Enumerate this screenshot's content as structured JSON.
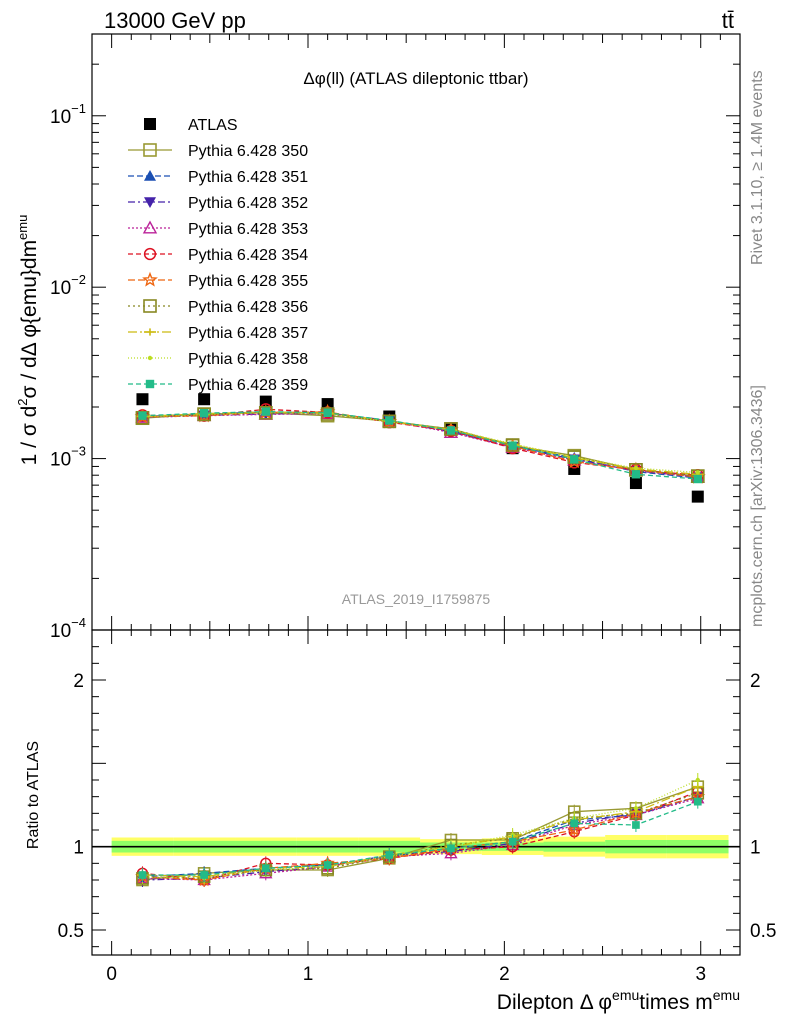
{
  "header": {
    "left": "13000 GeV pp",
    "right": "tt̄"
  },
  "side": {
    "rivet": "Rivet 3.1.10, ≥ 1.4M events",
    "mcplots": "mcplots.cern.ch [arXiv:1306.3436]"
  },
  "colors": {
    "band_inner": "#33ff66",
    "band_outer": "#ffff66"
  },
  "chart_data": [
    {
      "type": "scatter",
      "title": "Δφ(ll) (ATLAS dileptonic ttbar)",
      "watermark": "ATLAS_2019_I1759875",
      "ylabel": "1 / σ  d²σ / dΔ φ{emu}dm^emu",
      "yscale": "log",
      "ylim": [
        0.0001,
        0.3
      ],
      "yticks": [
        {
          "value": 0.001,
          "base": "10",
          "exp": "−3"
        },
        {
          "value": 0.01,
          "base": "10",
          "exp": "−2"
        },
        {
          "value": 0.1,
          "base": "10",
          "exp": "−1"
        },
        {
          "value": 0.0001,
          "base": "10",
          "exp": "−4"
        }
      ],
      "xlim": [
        -0.1,
        3.2
      ],
      "x": [
        0.157,
        0.471,
        0.785,
        1.1,
        1.414,
        1.728,
        2.042,
        2.356,
        2.67,
        2.985
      ],
      "series": [
        {
          "name": "ATLAS",
          "color": "#000000",
          "marker": "square-filled",
          "dash": "none",
          "values": [
            0.00222,
            0.00222,
            0.00215,
            0.00208,
            0.00176,
            0.00148,
            0.00115,
            0.00087,
            0.00072,
            0.0006
          ]
        },
        {
          "name": "Pythia 6.428 350",
          "color": "#999933",
          "marker": "square-open",
          "dash": "solid",
          "values": [
            0.00172,
            0.00182,
            0.00185,
            0.00178,
            0.00165,
            0.00149,
            0.00119,
            0.00104,
            0.00086,
            0.00079
          ]
        },
        {
          "name": "Pythia 6.428 351",
          "color": "#1b4fb3",
          "marker": "triangle-up-filled",
          "dash": "6,3",
          "values": [
            0.00176,
            0.00182,
            0.00187,
            0.00185,
            0.00166,
            0.00146,
            0.00118,
            0.00101,
            0.00084,
            0.00077
          ]
        },
        {
          "name": "Pythia 6.428 352",
          "color": "#4422aa",
          "marker": "triangle-down-filled",
          "dash": "7,3,2,3",
          "values": [
            0.00177,
            0.00179,
            0.00182,
            0.00184,
            0.00167,
            0.00143,
            0.00117,
            0.00099,
            0.00085,
            0.00078
          ]
        },
        {
          "name": "Pythia 6.428 353",
          "color": "#bb2299",
          "marker": "triangle-up-open",
          "dash": "2,2",
          "values": [
            0.00174,
            0.00178,
            0.00181,
            0.00183,
            0.00166,
            0.00142,
            0.00116,
            0.00098,
            0.00085,
            0.00078
          ]
        },
        {
          "name": "Pythia 6.428 354",
          "color": "#dd1122",
          "marker": "circle-open",
          "dash": "5,3",
          "values": [
            0.00179,
            0.00178,
            0.00194,
            0.00186,
            0.00163,
            0.00145,
            0.00115,
            0.00095,
            0.00086,
            0.0008
          ]
        },
        {
          "name": "Pythia 6.428 355",
          "color": "#ee6611",
          "marker": "star-open",
          "dash": "7,3",
          "values": [
            0.00175,
            0.00178,
            0.00186,
            0.00187,
            0.00164,
            0.00147,
            0.00118,
            0.00096,
            0.00086,
            0.00078
          ]
        },
        {
          "name": "Pythia 6.428 356",
          "color": "#888822",
          "marker": "square-open",
          "dash": "2,3",
          "values": [
            0.00173,
            0.00181,
            0.00185,
            0.00182,
            0.00165,
            0.00149,
            0.0012,
            0.00102,
            0.00086,
            0.00079
          ]
        },
        {
          "name": "Pythia 6.428 357",
          "color": "#ccbb11",
          "marker": "plus",
          "dash": "9,3,2,3",
          "values": [
            0.00176,
            0.00183,
            0.00187,
            0.00184,
            0.00166,
            0.00147,
            0.00121,
            0.00101,
            0.00087,
            0.00081
          ]
        },
        {
          "name": "Pythia 6.428 358",
          "color": "#bbdd22",
          "marker": "dot",
          "dash": "1,2",
          "values": [
            0.00175,
            0.0018,
            0.00186,
            0.00183,
            0.00164,
            0.00148,
            0.00122,
            0.00102,
            0.00088,
            0.00083
          ]
        },
        {
          "name": "Pythia 6.428 359",
          "color": "#22bb88",
          "marker": "square-filled-small",
          "dash": "5,3",
          "values": [
            0.00178,
            0.00184,
            0.00188,
            0.00185,
            0.00167,
            0.00146,
            0.00119,
            0.00099,
            0.00081,
            0.00076
          ]
        }
      ]
    },
    {
      "type": "scatter",
      "ylabel": "Ratio to ATLAS",
      "xlabel_main": "Dilepton",
      "xlabel_phi": "Δ φ",
      "xlabel_sup1": "emu",
      "xlabel_mid": "times m",
      "xlabel_sup2": "emu",
      "ylim": [
        0.35,
        2.3
      ],
      "yticks": [
        "0.5",
        "1",
        "2"
      ],
      "xlim": [
        -0.1,
        3.2
      ],
      "xticks": [
        "0",
        "1",
        "2",
        "3"
      ],
      "x": [
        0.157,
        0.471,
        0.785,
        1.1,
        1.414,
        1.728,
        2.042,
        2.356,
        2.67,
        2.985
      ],
      "band": {
        "inner": [
          0.035,
          0.035,
          0.035,
          0.035,
          0.035,
          0.025,
          0.025,
          0.03,
          0.04,
          0.04
        ],
        "outer": [
          0.055,
          0.055,
          0.055,
          0.055,
          0.055,
          0.045,
          0.05,
          0.06,
          0.07,
          0.07
        ]
      },
      "series": [
        {
          "name": "Pythia 6.428 350",
          "values": [
            0.8,
            0.84,
            0.86,
            0.86,
            0.93,
            1.04,
            1.04,
            1.21,
            1.23,
            1.36
          ]
        },
        {
          "name": "Pythia 6.428 351",
          "values": [
            0.82,
            0.84,
            0.87,
            0.89,
            0.94,
            0.99,
            1.03,
            1.16,
            1.19,
            1.3
          ]
        },
        {
          "name": "Pythia 6.428 352",
          "values": [
            0.8,
            0.81,
            0.85,
            0.88,
            0.95,
            0.97,
            1.02,
            1.14,
            1.2,
            1.3
          ]
        },
        {
          "name": "Pythia 6.428 353",
          "values": [
            0.81,
            0.8,
            0.84,
            0.88,
            0.94,
            0.96,
            1.01,
            1.13,
            1.19,
            1.29
          ]
        },
        {
          "name": "Pythia 6.428 354",
          "values": [
            0.84,
            0.8,
            0.9,
            0.89,
            0.93,
            0.98,
            1.0,
            1.09,
            1.19,
            1.33
          ]
        },
        {
          "name": "Pythia 6.428 355",
          "values": [
            0.82,
            0.8,
            0.87,
            0.9,
            0.93,
            0.99,
            1.03,
            1.1,
            1.2,
            1.3
          ]
        },
        {
          "name": "Pythia 6.428 356",
          "values": [
            0.81,
            0.82,
            0.86,
            0.87,
            0.94,
            1.01,
            1.05,
            1.17,
            1.2,
            1.32
          ]
        },
        {
          "name": "Pythia 6.428 357",
          "values": [
            0.83,
            0.82,
            0.87,
            0.88,
            0.95,
            1.0,
            1.06,
            1.16,
            1.21,
            1.36
          ]
        },
        {
          "name": "Pythia 6.428 358",
          "values": [
            0.82,
            0.81,
            0.86,
            0.88,
            0.94,
            1.0,
            1.07,
            1.17,
            1.23,
            1.4
          ]
        },
        {
          "name": "Pythia 6.428 359",
          "values": [
            0.83,
            0.83,
            0.87,
            0.89,
            0.95,
            0.99,
            1.03,
            1.14,
            1.13,
            1.27
          ]
        }
      ]
    }
  ]
}
